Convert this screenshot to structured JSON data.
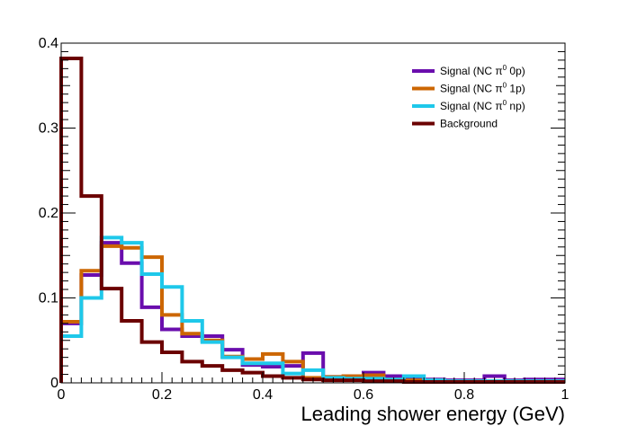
{
  "chart_data": {
    "type": "step-histogram",
    "xlabel": "Leading shower energy (GeV)",
    "ylabel": "",
    "xlim": [
      0,
      1
    ],
    "ylim": [
      0,
      0.4
    ],
    "x_ticks": [
      0,
      0.2,
      0.4,
      0.6,
      0.8,
      1
    ],
    "x_tick_labels": [
      "0",
      "0.2",
      "0.4",
      "0.6",
      "0.8",
      "1"
    ],
    "y_ticks": [
      0,
      0.1,
      0.2,
      0.3,
      0.4
    ],
    "y_tick_labels": [
      "0",
      "0.1",
      "0.2",
      "0.3",
      "0.4"
    ],
    "grid": false,
    "legend_position": "top-right",
    "bin_edges": [
      0,
      0.04,
      0.08,
      0.12,
      0.16,
      0.2,
      0.24,
      0.28,
      0.32,
      0.36,
      0.4,
      0.44,
      0.48,
      0.52,
      0.56,
      0.6,
      0.64,
      0.68,
      0.72,
      0.76,
      0.8,
      0.84,
      0.88,
      0.92,
      0.96,
      1.0
    ],
    "series": [
      {
        "name": "Signal (NC π⁰ 0p)",
        "legend_label": {
          "prefix": "Signal (NC π",
          "superscript": "0",
          "suffix": " 0p)"
        },
        "color": "#6a0dad",
        "values": [
          0.07,
          0.127,
          0.165,
          0.141,
          0.089,
          0.063,
          0.055,
          0.055,
          0.039,
          0.021,
          0.019,
          0.02,
          0.035,
          0.007,
          0.006,
          0.012,
          0.008,
          0.004,
          0.004,
          0.003,
          0.003,
          0.008,
          0.003,
          0.004,
          0.004
        ]
      },
      {
        "name": "Signal (NC π⁰ 1p)",
        "legend_label": {
          "prefix": "Signal (NC π",
          "superscript": "0",
          "suffix": " 1p)"
        },
        "color": "#cc6600",
        "values": [
          0.072,
          0.132,
          0.161,
          0.159,
          0.148,
          0.08,
          0.058,
          0.05,
          0.031,
          0.028,
          0.034,
          0.025,
          0.006,
          0.007,
          0.008,
          0.009,
          0.004,
          0.003,
          0.003,
          0.002,
          0.002,
          0.002,
          0.002,
          0.002,
          0.002
        ]
      },
      {
        "name": "Signal (NC π⁰ np)",
        "legend_label": {
          "prefix": "Signal (NC π",
          "superscript": "0",
          "suffix": " np)"
        },
        "color": "#1ec8ea",
        "values": [
          0.055,
          0.1,
          0.171,
          0.165,
          0.128,
          0.113,
          0.073,
          0.048,
          0.03,
          0.023,
          0.023,
          0.011,
          0.015,
          0.006,
          0.005,
          0.005,
          0.004,
          0.008,
          0.003,
          0.002,
          0.002,
          0.002,
          0.002,
          0.002,
          0.002
        ]
      },
      {
        "name": "Background",
        "legend_label": {
          "prefix": "Background",
          "superscript": "",
          "suffix": ""
        },
        "color": "#6b0000",
        "values": [
          0.382,
          0.22,
          0.111,
          0.073,
          0.048,
          0.036,
          0.025,
          0.02,
          0.015,
          0.012,
          0.008,
          0.006,
          0.004,
          0.003,
          0.003,
          0.002,
          0.002,
          0.001,
          0.001,
          0.001,
          0.001,
          0.001,
          0.001,
          0.001,
          0.001
        ]
      }
    ]
  }
}
